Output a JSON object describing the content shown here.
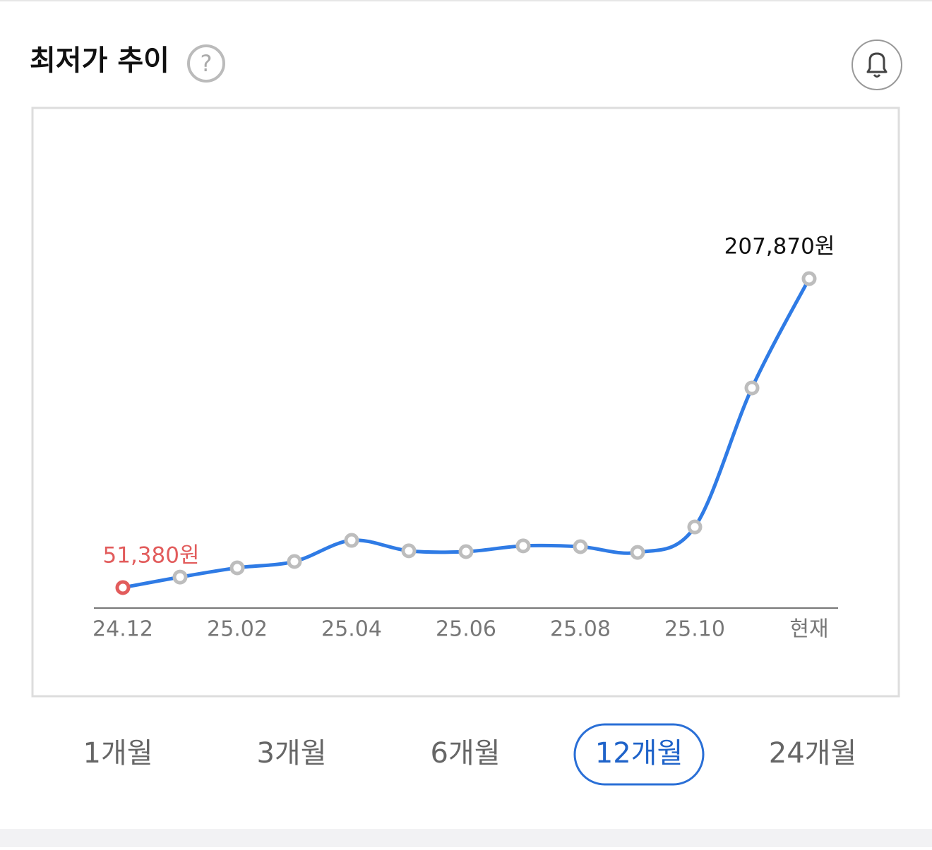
{
  "header": {
    "title": "최저가 추이",
    "help_icon": "?"
  },
  "chart_data": {
    "type": "line",
    "categories": [
      "24.12",
      null,
      "25.02",
      null,
      "25.04",
      null,
      "25.06",
      null,
      "25.08",
      null,
      "25.10",
      null,
      "현재"
    ],
    "series": [
      {
        "color": "#2f7be5",
        "values": [
          51380,
          56700,
          61400,
          64600,
          75300,
          70000,
          69600,
          72500,
          72100,
          69200,
          82100,
          152500,
          207870
        ],
        "value_labels": [
          "51,380원",
          null,
          null,
          null,
          null,
          null,
          null,
          null,
          null,
          null,
          null,
          null,
          "207,870원"
        ]
      }
    ],
    "min_color": "#e25c5c"
  },
  "periods": {
    "options": [
      "1개월",
      "3개월",
      "6개월",
      "12개월",
      "24개월"
    ],
    "selected_index": 3
  }
}
